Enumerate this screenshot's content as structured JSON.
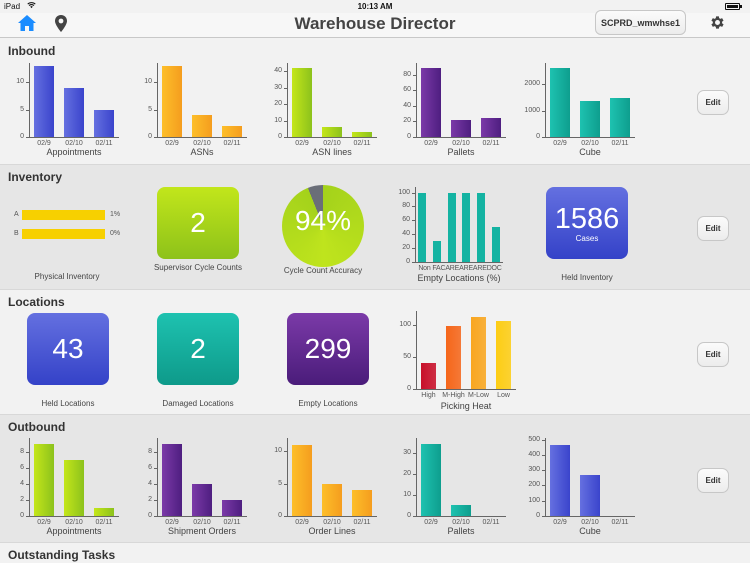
{
  "status_bar": {
    "carrier": "iPad",
    "time": "10:13 AM"
  },
  "nav": {
    "title": "Warehouse Director",
    "warehouse_button": "SCPRD_wmwhse1",
    "icons": {
      "home": "home-icon",
      "location": "map-pin-icon",
      "settings": "gear-icon"
    },
    "home_color": "#1a8cff"
  },
  "sections": {
    "inbound": {
      "title": "Inbound",
      "edit_label": "Edit",
      "charts": [
        {
          "caption": "Appointments",
          "color": [
            "#6570e0",
            "#3a44cc"
          ],
          "yticks": [
            "0",
            "5",
            "10"
          ],
          "ymax": 13.5,
          "yvals": [
            0,
            5,
            10
          ],
          "categories": [
            "02/9",
            "02/10",
            "02/11"
          ],
          "values": [
            13,
            9,
            5
          ]
        },
        {
          "caption": "ASNs",
          "color": [
            "#fdbf2a",
            "#f59d1e"
          ],
          "yticks": [
            "0",
            "5",
            "10"
          ],
          "ymax": 13.5,
          "yvals": [
            0,
            5,
            10
          ],
          "categories": [
            "02/9",
            "02/10",
            "02/11"
          ],
          "values": [
            13,
            4,
            2
          ]
        },
        {
          "caption": "ASN lines",
          "color": [
            "#c4e61a",
            "#8cc21c"
          ],
          "yticks": [
            "0",
            "10",
            "20",
            "30",
            "40"
          ],
          "ymax": 45,
          "yvals": [
            0,
            10,
            20,
            30,
            40
          ],
          "categories": [
            "02/9",
            "02/10",
            "02/11"
          ],
          "values": [
            42,
            6,
            3
          ]
        },
        {
          "caption": "Pallets",
          "color": [
            "#7b3aa8",
            "#4e1e80"
          ],
          "yticks": [
            "0",
            "20",
            "40",
            "60",
            "80"
          ],
          "ymax": 95,
          "yvals": [
            0,
            20,
            40,
            60,
            80
          ],
          "categories": [
            "02/9",
            "02/10",
            "02/11"
          ],
          "values": [
            88,
            22,
            25
          ]
        },
        {
          "caption": "Cube",
          "color": [
            "#1ec2b0",
            "#0e9e8e"
          ],
          "yticks": [
            "0",
            "1000",
            "2000"
          ],
          "ymax": 2800,
          "yvals": [
            0,
            1000,
            2000
          ],
          "categories": [
            "02/9",
            "02/10",
            "02/11"
          ],
          "values": [
            2600,
            1370,
            1480
          ]
        }
      ]
    },
    "inventory": {
      "title": "Inventory",
      "edit_label": "Edit",
      "physical_inventory": {
        "caption": "Physical Inventory",
        "rows": [
          {
            "label": "A",
            "value": "1%"
          },
          {
            "label": "B",
            "value": "0%"
          }
        ],
        "bar_color": "#f7d000"
      },
      "supervisor_cycle_counts": {
        "value": "2",
        "caption": "Supervisor Cycle Counts",
        "color": [
          "#c2e61b",
          "#8dc21a"
        ]
      },
      "cycle_count_accuracy": {
        "value": "94%",
        "percent": 94,
        "caption": "Cycle Count Accuracy",
        "color": "#a6d41c",
        "remainder_color": "#6a6e78"
      },
      "empty_locations": {
        "caption": "Empty Locations (%)",
        "yticks": [
          "0",
          "20",
          "40",
          "60",
          "80",
          "100"
        ],
        "yvals": [
          0,
          20,
          40,
          60,
          80,
          100
        ],
        "ymax": 108,
        "categories": [
          "Non",
          "FAC",
          "ARE",
          "ARE",
          "ARE",
          "DOC"
        ],
        "x_label_text": "Non FACAREAREAREDOC",
        "values": [
          100,
          30,
          100,
          100,
          100,
          50
        ],
        "color": "#14b3a2"
      },
      "held_inventory": {
        "value": "1586",
        "unit": "Cases",
        "caption": "Held Inventory",
        "color": [
          "#6470e0",
          "#3442c8"
        ]
      }
    },
    "locations": {
      "title": "Locations",
      "edit_label": "Edit",
      "tiles": [
        {
          "value": "43",
          "caption": "Held Locations",
          "color": [
            "#6470e0",
            "#3442c8"
          ]
        },
        {
          "value": "2",
          "caption": "Damaged Locations",
          "color": [
            "#1ec2b0",
            "#0e9a8a"
          ]
        },
        {
          "value": "299",
          "caption": "Empty Locations",
          "color": [
            "#7b3aa8",
            "#4a1c7a"
          ]
        }
      ],
      "picking_heat": {
        "caption": "Picking Heat",
        "yticks": [
          "0",
          "50",
          "100"
        ],
        "yvals": [
          0,
          50,
          100
        ],
        "ymax": 122,
        "categories": [
          "High",
          "M-High",
          "M-Low",
          "Low"
        ],
        "values": [
          40,
          98,
          112,
          107
        ],
        "colors": [
          "#c8102a",
          "#f5661a",
          "#f9a61f",
          "#fdcd14"
        ]
      }
    },
    "outbound": {
      "title": "Outbound",
      "edit_label": "Edit",
      "charts": [
        {
          "caption": "Appointments",
          "color": [
            "#c4e61a",
            "#8cc21c"
          ],
          "yticks": [
            "0",
            "2",
            "4",
            "6",
            "8"
          ],
          "ymax": 9.8,
          "yvals": [
            0,
            2,
            4,
            6,
            8
          ],
          "categories": [
            "02/9",
            "02/10",
            "02/11"
          ],
          "values": [
            9,
            7,
            1
          ]
        },
        {
          "caption": "Shipment Orders",
          "color": [
            "#7b3aa8",
            "#4e1e80"
          ],
          "yticks": [
            "0",
            "2",
            "4",
            "6",
            "8"
          ],
          "ymax": 9.8,
          "yvals": [
            0,
            2,
            4,
            6,
            8
          ],
          "categories": [
            "02/9",
            "02/10",
            "02/11"
          ],
          "values": [
            9,
            4,
            2
          ]
        },
        {
          "caption": "Order Lines",
          "color": [
            "#fdbf2a",
            "#f59d1e"
          ],
          "yticks": [
            "0",
            "5",
            "10"
          ],
          "ymax": 12,
          "yvals": [
            0,
            5,
            10
          ],
          "categories": [
            "02/9",
            "02/10",
            "02/11"
          ],
          "values": [
            11,
            5,
            4
          ]
        },
        {
          "caption": "Pallets",
          "color": [
            "#1ec2b0",
            "#0e9e8e"
          ],
          "yticks": [
            "0",
            "10",
            "20",
            "30"
          ],
          "ymax": 37,
          "yvals": [
            0,
            10,
            20,
            30
          ],
          "categories": [
            "02/9",
            "02/10",
            "02/11"
          ],
          "values": [
            34,
            5,
            0
          ]
        },
        {
          "caption": "Cube",
          "color": [
            "#6570e0",
            "#3a44cc"
          ],
          "yticks": [
            "0",
            "100",
            "200",
            "300",
            "400",
            "500"
          ],
          "ymax": 510,
          "yvals": [
            0,
            100,
            200,
            300,
            400,
            500
          ],
          "categories": [
            "02/9",
            "02/10",
            "02/11"
          ],
          "values": [
            465,
            270,
            0
          ]
        }
      ]
    },
    "outstanding_tasks": {
      "title": "Outstanding Tasks"
    }
  }
}
